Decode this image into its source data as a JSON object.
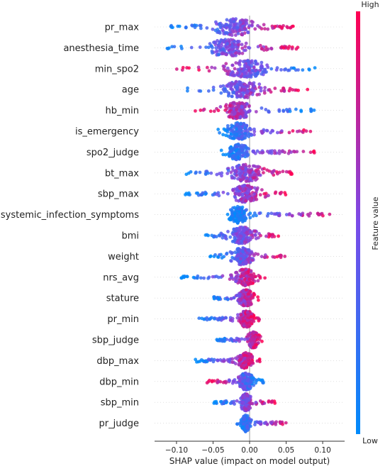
{
  "chart_data": {
    "type": "scatter",
    "subtype": "shap-beeswarm",
    "title": "",
    "xlabel": "SHAP value (impact on model output)",
    "ylabel": "",
    "xlim": [
      -0.13,
      0.13
    ],
    "xticks": [
      -0.1,
      -0.05,
      0.0,
      0.05,
      0.1
    ],
    "xtick_labels": [
      "−0.10",
      "−0.05",
      "0.00",
      "0.05",
      "0.10"
    ],
    "grid": false,
    "zero_line": true,
    "colorbar": {
      "label": "Feature value",
      "high_label": "High",
      "low_label": "Low",
      "high_color": "#ff0052",
      "low_color": "#008bfb"
    },
    "features": [
      {
        "name": "pr_max",
        "min": -0.11,
        "max": 0.075,
        "low_side": "negative",
        "peak": -0.02,
        "spread": 0.04
      },
      {
        "name": "anesthesia_time",
        "min": -0.12,
        "max": 0.075,
        "low_side": "negative",
        "peak": -0.03,
        "spread": 0.045
      },
      {
        "name": "min_spo2",
        "min": -0.1,
        "max": 0.09,
        "low_side": "positive",
        "peak": -0.005,
        "spread": 0.045
      },
      {
        "name": "age",
        "min": -0.095,
        "max": 0.08,
        "low_side": "negative",
        "peak": -0.01,
        "spread": 0.04
      },
      {
        "name": "hb_min",
        "min": -0.075,
        "max": 0.09,
        "low_side": "positive",
        "peak": -0.015,
        "spread": 0.03
      },
      {
        "name": "is_emergency",
        "min": -0.045,
        "max": 0.085,
        "low_side": "negative",
        "peak": -0.015,
        "spread": 0.025
      },
      {
        "name": "spo2_judge",
        "min": -0.04,
        "max": 0.09,
        "low_side": "negative",
        "peak": -0.015,
        "spread": 0.02
      },
      {
        "name": "bt_max",
        "min": -0.09,
        "max": 0.06,
        "low_side": "negative",
        "peak": -0.005,
        "spread": 0.035
      },
      {
        "name": "sbp_max",
        "min": -0.09,
        "max": 0.05,
        "low_side": "negative",
        "peak": -0.005,
        "spread": 0.03
      },
      {
        "name": "systemic_infection_symptoms",
        "min": -0.03,
        "max": 0.12,
        "low_side": "negative",
        "peak": -0.015,
        "spread": 0.02
      },
      {
        "name": "bmi",
        "min": -0.065,
        "max": 0.045,
        "low_side": "negative",
        "peak": -0.01,
        "spread": 0.025
      },
      {
        "name": "weight",
        "min": -0.055,
        "max": 0.05,
        "low_side": "negative",
        "peak": -0.01,
        "spread": 0.022
      },
      {
        "name": "nrs_avg",
        "min": -0.095,
        "max": 0.025,
        "low_side": "negative",
        "peak": -0.005,
        "spread": 0.02
      },
      {
        "name": "stature",
        "min": -0.05,
        "max": 0.012,
        "low_side": "negative",
        "peak": -0.005,
        "spread": 0.015
      },
      {
        "name": "pr_min",
        "min": -0.07,
        "max": 0.015,
        "low_side": "negative",
        "peak": -0.005,
        "spread": 0.015
      },
      {
        "name": "sbp_judge",
        "min": -0.045,
        "max": 0.02,
        "low_side": "negative",
        "peak": 0.005,
        "spread": 0.012
      },
      {
        "name": "dbp_max",
        "min": -0.075,
        "max": 0.015,
        "low_side": "negative",
        "peak": -0.005,
        "spread": 0.015
      },
      {
        "name": "dbp_min",
        "min": -0.06,
        "max": 0.02,
        "low_side": "positive",
        "peak": -0.005,
        "spread": 0.015
      },
      {
        "name": "sbp_min",
        "min": -0.05,
        "max": 0.035,
        "low_side": "negative",
        "peak": -0.005,
        "spread": 0.012
      },
      {
        "name": "pr_judge",
        "min": -0.02,
        "max": 0.055,
        "low_side": "negative",
        "peak": -0.005,
        "spread": 0.008
      }
    ]
  }
}
